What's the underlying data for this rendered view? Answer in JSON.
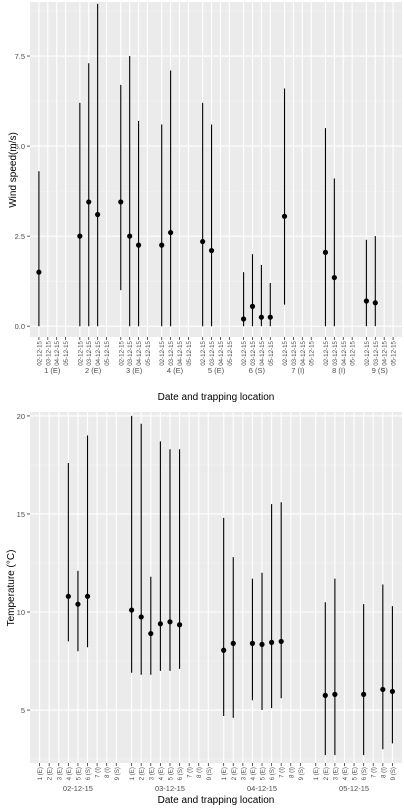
{
  "chart_data": [
    {
      "type": "scatter",
      "title": "",
      "xlabel": "Date and trapping location",
      "ylabel": "Wind speed(m/s)",
      "ylim": [
        -0.3,
        9.0
      ],
      "yticks": [
        0.0,
        2.5,
        5.0,
        7.5
      ],
      "ytick_labels": [
        "0.0",
        "2.5",
        "5.0",
        "7.5"
      ],
      "grid": true,
      "x_inner_labels": [
        "02-12-15",
        "03-12-15",
        "04-12-15",
        "05-12-15"
      ],
      "groups": [
        {
          "label": "1 (E)",
          "points": [
            {
              "mean": 1.5,
              "min": 0.0,
              "max": 4.3
            },
            null,
            null,
            null
          ]
        },
        {
          "label": "2 (E)",
          "points": [
            {
              "mean": 2.5,
              "min": 0.0,
              "max": 6.2
            },
            {
              "mean": 3.45,
              "min": 0.0,
              "max": 7.3
            },
            {
              "mean": 3.1,
              "min": 0.0,
              "max": 8.95
            },
            null
          ]
        },
        {
          "label": "3 (E)",
          "points": [
            {
              "mean": 3.45,
              "min": 1.0,
              "max": 6.7
            },
            {
              "mean": 2.5,
              "min": 0.0,
              "max": 7.5
            },
            {
              "mean": 2.25,
              "min": 0.0,
              "max": 5.7
            },
            null
          ]
        },
        {
          "label": "4 (E)",
          "points": [
            {
              "mean": 2.25,
              "min": 0.0,
              "max": 5.6
            },
            {
              "mean": 2.6,
              "min": 0.0,
              "max": 7.1
            },
            null,
            null
          ]
        },
        {
          "label": "5 (E)",
          "points": [
            {
              "mean": 2.35,
              "min": 0.0,
              "max": 6.2
            },
            {
              "mean": 2.1,
              "min": 0.0,
              "max": 5.6
            },
            null,
            null
          ]
        },
        {
          "label": "6 (S)",
          "points": [
            {
              "mean": 0.2,
              "min": 0.0,
              "max": 1.5
            },
            {
              "mean": 0.55,
              "min": 0.0,
              "max": 2.0
            },
            {
              "mean": 0.25,
              "min": 0.0,
              "max": 1.7
            },
            {
              "mean": 0.25,
              "min": 0.0,
              "max": 1.2
            }
          ]
        },
        {
          "label": "7 (I)",
          "points": [
            {
              "mean": 3.05,
              "min": 0.6,
              "max": 6.6
            },
            null,
            null,
            null
          ]
        },
        {
          "label": "8 (I)",
          "points": [
            {
              "mean": 2.05,
              "min": 0.0,
              "max": 5.5
            },
            {
              "mean": 1.35,
              "min": 0.0,
              "max": 4.1
            },
            null,
            null
          ]
        },
        {
          "label": "9 (S)",
          "points": [
            {
              "mean": 0.7,
              "min": 0.0,
              "max": 2.4
            },
            {
              "mean": 0.65,
              "min": 0.0,
              "max": 2.5
            },
            null,
            null
          ]
        }
      ]
    },
    {
      "type": "scatter",
      "title": "",
      "xlabel": "Date and trapping location",
      "ylabel": "Temperature (°C)",
      "ylim": [
        2.3,
        20.2
      ],
      "yticks": [
        5,
        10,
        15,
        20
      ],
      "ytick_labels": [
        "5",
        "10",
        "15",
        "20"
      ],
      "grid": true,
      "x_inner_labels": [
        "1 (E)",
        "2 (E)",
        "3 (E)",
        "4 (E)",
        "5 (E)",
        "6 (S)",
        "7 (I)",
        "8 (I)",
        "9 (S)"
      ],
      "groups": [
        {
          "label": "02-12-15",
          "points": [
            null,
            null,
            null,
            {
              "mean": 10.8,
              "min": 8.5,
              "max": 17.6
            },
            {
              "mean": 10.4,
              "min": 8.0,
              "max": 12.1
            },
            {
              "mean": 10.8,
              "min": 8.2,
              "max": 19.0
            },
            null,
            null,
            null
          ]
        },
        {
          "label": "03-12-15",
          "points": [
            {
              "mean": 10.1,
              "min": 6.9,
              "max": 20.0
            },
            {
              "mean": 9.75,
              "min": 6.8,
              "max": 19.6
            },
            {
              "mean": 8.9,
              "min": 6.8,
              "max": 11.8
            },
            {
              "mean": 9.4,
              "min": 7.0,
              "max": 18.7
            },
            {
              "mean": 9.5,
              "min": 7.0,
              "max": 18.3
            },
            {
              "mean": 9.35,
              "min": 7.1,
              "max": 18.3
            },
            null,
            null,
            null
          ]
        },
        {
          "label": "04-12-15",
          "points": [
            {
              "mean": 8.05,
              "min": 4.7,
              "max": 14.8
            },
            {
              "mean": 8.4,
              "min": 4.6,
              "max": 12.8
            },
            null,
            {
              "mean": 8.4,
              "min": 5.5,
              "max": 11.7
            },
            {
              "mean": 8.35,
              "min": 5.0,
              "max": 12.0
            },
            {
              "mean": 8.45,
              "min": 5.1,
              "max": 15.5
            },
            {
              "mean": 8.5,
              "min": 5.6,
              "max": 15.6
            },
            null,
            null
          ]
        },
        {
          "label": "05-12-15",
          "points": [
            null,
            {
              "mean": 5.75,
              "min": 2.7,
              "max": 10.5
            },
            {
              "mean": 5.8,
              "min": 2.7,
              "max": 11.7
            },
            null,
            null,
            {
              "mean": 5.8,
              "min": 2.7,
              "max": 10.4
            },
            null,
            {
              "mean": 6.05,
              "min": 3.0,
              "max": 11.4
            },
            {
              "mean": 5.95,
              "min": 3.3,
              "max": 10.3
            }
          ]
        }
      ]
    }
  ]
}
